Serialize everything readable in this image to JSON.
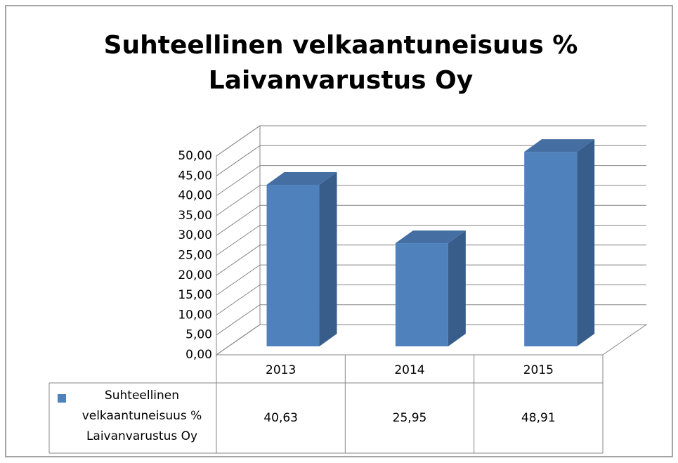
{
  "chart_data": {
    "type": "bar3d",
    "title": "Suhteellinen velkaantuneisuus % Laivanvarustus Oy",
    "categories": [
      "2013",
      "2014",
      "2015"
    ],
    "series": [
      {
        "name": "Suhteellinen velkaantuneisuus % Laivanvarustus Oy",
        "color": "#4f81bd",
        "values": [
          40.63,
          25.95,
          48.91
        ],
        "value_labels": [
          "40,63",
          "25,95",
          "48,91"
        ]
      }
    ],
    "ylim": [
      0,
      50
    ],
    "yticks": [
      {
        "value": 0,
        "label": "0,00"
      },
      {
        "value": 5,
        "label": "5,00"
      },
      {
        "value": 10,
        "label": "10,00"
      },
      {
        "value": 15,
        "label": "15,00"
      },
      {
        "value": 20,
        "label": "20,00"
      },
      {
        "value": 25,
        "label": "25,00"
      },
      {
        "value": 30,
        "label": "30,00"
      },
      {
        "value": 35,
        "label": "35,00"
      },
      {
        "value": 40,
        "label": "40,00"
      },
      {
        "value": 45,
        "label": "45,00"
      },
      {
        "value": 50,
        "label": "50,00"
      }
    ],
    "grid": true,
    "legend": "table"
  }
}
